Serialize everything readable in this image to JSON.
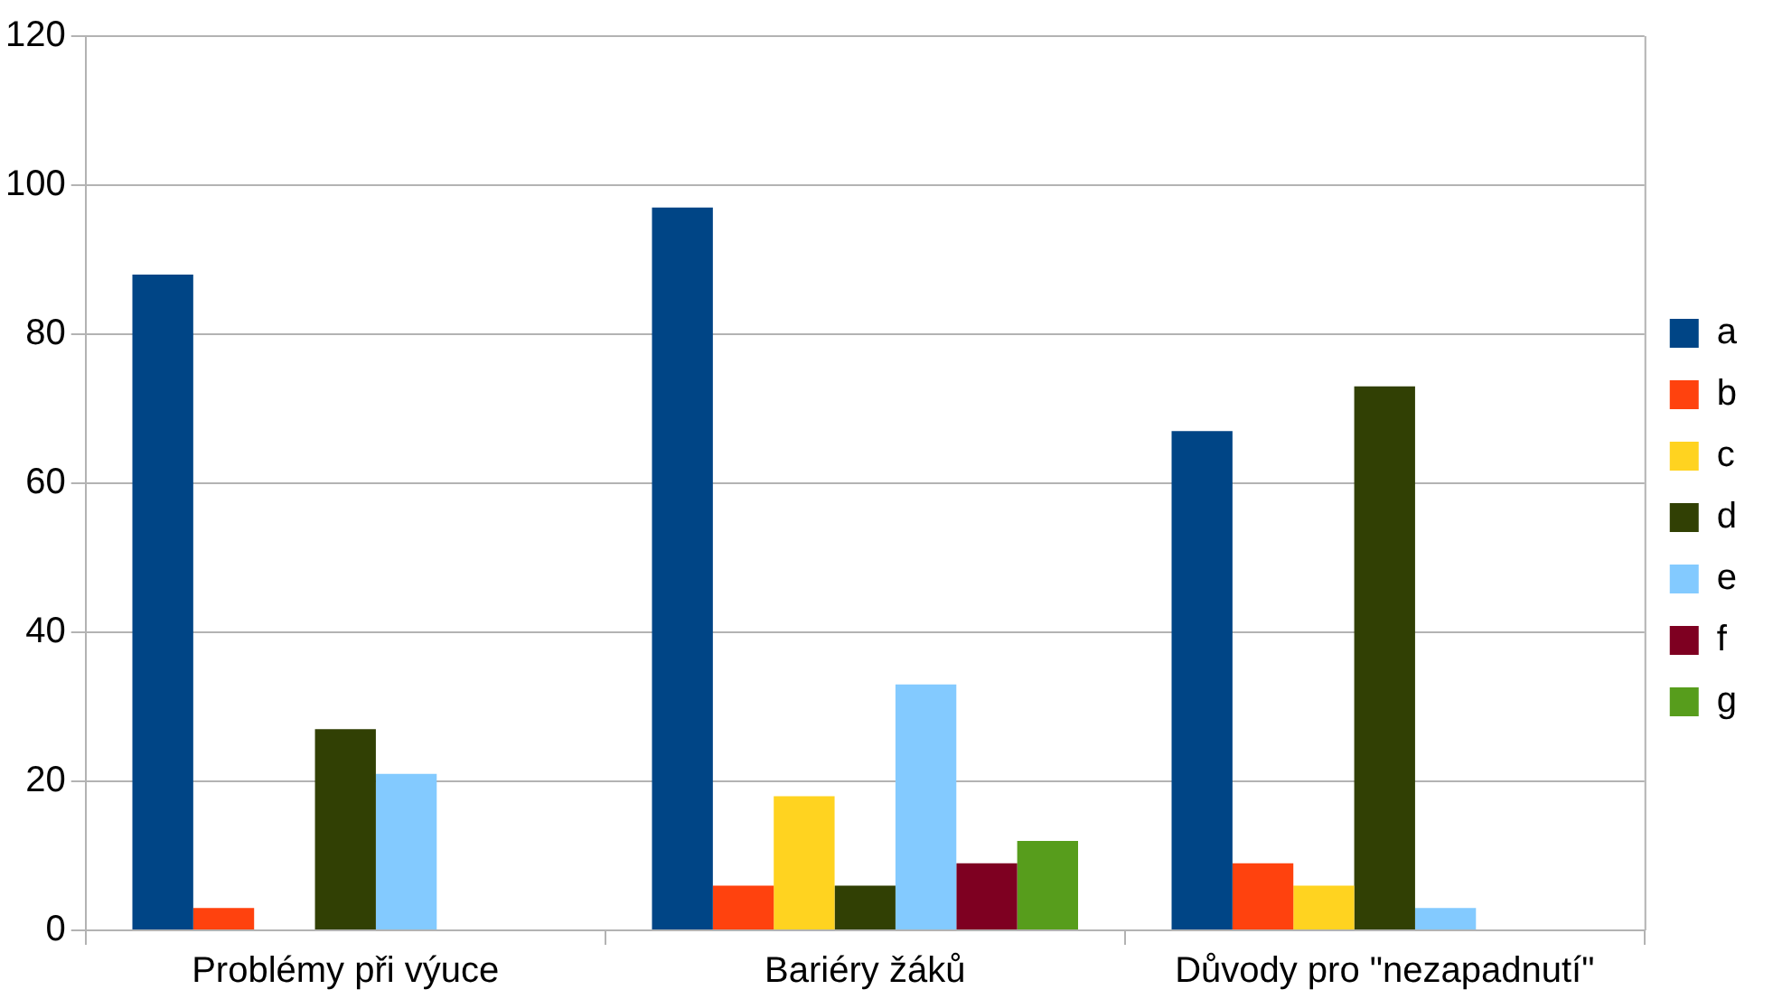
{
  "chart_data": {
    "type": "bar",
    "categories": [
      "Problémy při výuce",
      "Bariéry žáků",
      "Důvody pro \"nezapadnutí\""
    ],
    "series": [
      {
        "name": "a",
        "color": "#004586",
        "values": [
          88,
          97,
          67
        ]
      },
      {
        "name": "b",
        "color": "#ff420e",
        "values": [
          3,
          6,
          9
        ]
      },
      {
        "name": "c",
        "color": "#ffd320",
        "values": [
          0,
          18,
          6
        ]
      },
      {
        "name": "d",
        "color": "#314004",
        "values": [
          27,
          6,
          73
        ]
      },
      {
        "name": "e",
        "color": "#83caff",
        "values": [
          21,
          33,
          3
        ]
      },
      {
        "name": "f",
        "color": "#7e0021",
        "values": [
          0,
          9,
          0
        ]
      },
      {
        "name": "g",
        "color": "#579d1c",
        "values": [
          0,
          12,
          0
        ]
      }
    ],
    "ylim": [
      0,
      120
    ],
    "yticks": [
      0,
      20,
      40,
      60,
      80,
      100,
      120
    ],
    "grid": "y",
    "legend": "right"
  }
}
